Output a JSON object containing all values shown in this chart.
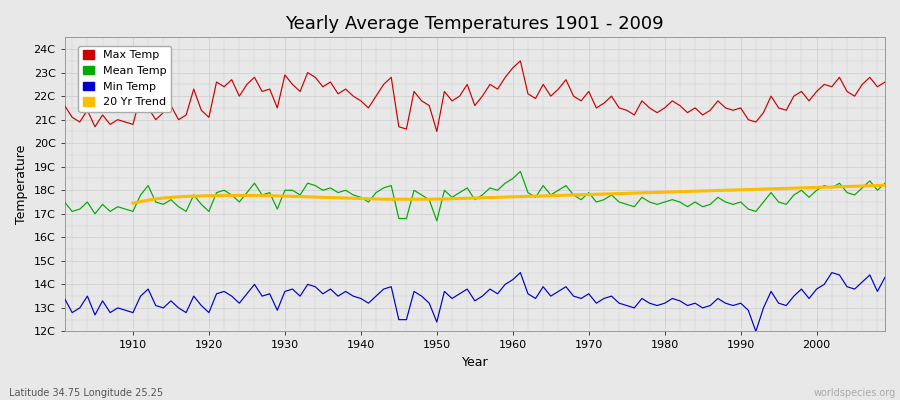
{
  "title": "Yearly Average Temperatures 1901 - 2009",
  "xlabel": "Year",
  "ylabel": "Temperature",
  "lat_lon_label": "Latitude 34.75 Longitude 25.25",
  "watermark": "worldspecies.org",
  "years": [
    1901,
    1902,
    1903,
    1904,
    1905,
    1906,
    1907,
    1908,
    1909,
    1910,
    1911,
    1912,
    1913,
    1914,
    1915,
    1916,
    1917,
    1918,
    1919,
    1920,
    1921,
    1922,
    1923,
    1924,
    1925,
    1926,
    1927,
    1928,
    1929,
    1930,
    1931,
    1932,
    1933,
    1934,
    1935,
    1936,
    1937,
    1938,
    1939,
    1940,
    1941,
    1942,
    1943,
    1944,
    1945,
    1946,
    1947,
    1948,
    1949,
    1950,
    1951,
    1952,
    1953,
    1954,
    1955,
    1956,
    1957,
    1958,
    1959,
    1960,
    1961,
    1962,
    1963,
    1964,
    1965,
    1966,
    1967,
    1968,
    1969,
    1970,
    1971,
    1972,
    1973,
    1974,
    1975,
    1976,
    1977,
    1978,
    1979,
    1980,
    1981,
    1982,
    1983,
    1984,
    1985,
    1986,
    1987,
    1988,
    1989,
    1990,
    1991,
    1992,
    1993,
    1994,
    1995,
    1996,
    1997,
    1998,
    1999,
    2000,
    2001,
    2002,
    2003,
    2004,
    2005,
    2006,
    2007,
    2008,
    2009
  ],
  "max_temp": [
    21.6,
    21.1,
    20.9,
    21.4,
    20.7,
    21.2,
    20.8,
    21.0,
    20.9,
    20.8,
    22.0,
    21.5,
    21.0,
    21.3,
    21.6,
    21.0,
    21.2,
    22.3,
    21.4,
    21.1,
    22.6,
    22.4,
    22.7,
    22.0,
    22.5,
    22.8,
    22.2,
    22.3,
    21.5,
    22.9,
    22.5,
    22.2,
    23.0,
    22.8,
    22.4,
    22.6,
    22.1,
    22.3,
    22.0,
    21.8,
    21.5,
    22.0,
    22.5,
    22.8,
    20.7,
    20.6,
    22.2,
    21.8,
    21.6,
    20.5,
    22.2,
    21.8,
    22.0,
    22.5,
    21.6,
    22.0,
    22.5,
    22.3,
    22.8,
    23.2,
    23.5,
    22.1,
    21.9,
    22.5,
    22.0,
    22.3,
    22.7,
    22.0,
    21.8,
    22.2,
    21.5,
    21.7,
    22.0,
    21.5,
    21.4,
    21.2,
    21.8,
    21.5,
    21.3,
    21.5,
    21.8,
    21.6,
    21.3,
    21.5,
    21.2,
    21.4,
    21.8,
    21.5,
    21.4,
    21.5,
    21.0,
    20.9,
    21.3,
    22.0,
    21.5,
    21.4,
    22.0,
    22.2,
    21.8,
    22.2,
    22.5,
    22.4,
    22.8,
    22.2,
    22.0,
    22.5,
    22.8,
    22.4,
    22.6
  ],
  "mean_temp": [
    17.5,
    17.1,
    17.2,
    17.5,
    17.0,
    17.4,
    17.1,
    17.3,
    17.2,
    17.1,
    17.8,
    18.2,
    17.5,
    17.4,
    17.6,
    17.3,
    17.1,
    17.8,
    17.4,
    17.1,
    17.9,
    18.0,
    17.8,
    17.5,
    17.9,
    18.3,
    17.8,
    17.9,
    17.2,
    18.0,
    18.0,
    17.8,
    18.3,
    18.2,
    18.0,
    18.1,
    17.9,
    18.0,
    17.8,
    17.7,
    17.5,
    17.9,
    18.1,
    18.2,
    16.8,
    16.8,
    18.0,
    17.8,
    17.6,
    16.7,
    18.0,
    17.7,
    17.9,
    18.1,
    17.6,
    17.8,
    18.1,
    18.0,
    18.3,
    18.5,
    18.8,
    17.9,
    17.7,
    18.2,
    17.8,
    18.0,
    18.2,
    17.8,
    17.6,
    17.9,
    17.5,
    17.6,
    17.8,
    17.5,
    17.4,
    17.3,
    17.7,
    17.5,
    17.4,
    17.5,
    17.6,
    17.5,
    17.3,
    17.5,
    17.3,
    17.4,
    17.7,
    17.5,
    17.4,
    17.5,
    17.2,
    17.1,
    17.5,
    17.9,
    17.5,
    17.4,
    17.8,
    18.0,
    17.7,
    18.0,
    18.2,
    18.1,
    18.3,
    17.9,
    17.8,
    18.1,
    18.4,
    18.0,
    18.3
  ],
  "min_temp": [
    13.4,
    12.8,
    13.0,
    13.5,
    12.7,
    13.3,
    12.8,
    13.0,
    12.9,
    12.8,
    13.5,
    13.8,
    13.1,
    13.0,
    13.3,
    13.0,
    12.8,
    13.5,
    13.1,
    12.8,
    13.6,
    13.7,
    13.5,
    13.2,
    13.6,
    14.0,
    13.5,
    13.6,
    12.9,
    13.7,
    13.8,
    13.5,
    14.0,
    13.9,
    13.6,
    13.8,
    13.5,
    13.7,
    13.5,
    13.4,
    13.2,
    13.5,
    13.8,
    13.9,
    12.5,
    12.5,
    13.7,
    13.5,
    13.2,
    12.4,
    13.7,
    13.4,
    13.6,
    13.8,
    13.3,
    13.5,
    13.8,
    13.6,
    14.0,
    14.2,
    14.5,
    13.6,
    13.4,
    13.9,
    13.5,
    13.7,
    13.9,
    13.5,
    13.4,
    13.6,
    13.2,
    13.4,
    13.5,
    13.2,
    13.1,
    13.0,
    13.4,
    13.2,
    13.1,
    13.2,
    13.4,
    13.3,
    13.1,
    13.2,
    13.0,
    13.1,
    13.4,
    13.2,
    13.1,
    13.2,
    12.9,
    12.0,
    13.0,
    13.7,
    13.2,
    13.1,
    13.5,
    13.8,
    13.4,
    13.8,
    14.0,
    14.5,
    14.4,
    13.9,
    13.8,
    14.1,
    14.4,
    13.7,
    14.3
  ],
  "trend_start_year": 1910,
  "trend_values": [
    17.45,
    17.52,
    17.58,
    17.63,
    17.67,
    17.7,
    17.72,
    17.74,
    17.75,
    17.76,
    17.77,
    17.77,
    17.78,
    17.78,
    17.78,
    17.78,
    17.78,
    17.77,
    17.77,
    17.76,
    17.75,
    17.74,
    17.73,
    17.72,
    17.71,
    17.7,
    17.69,
    17.68,
    17.67,
    17.66,
    17.65,
    17.64,
    17.63,
    17.62,
    17.62,
    17.62,
    17.62,
    17.62,
    17.62,
    17.62,
    17.63,
    17.63,
    17.64,
    17.65,
    17.66,
    17.67,
    17.68,
    17.69,
    17.7,
    17.71,
    17.72,
    17.73,
    17.74,
    17.75,
    17.76,
    17.77,
    17.78,
    17.79,
    17.8,
    17.81,
    17.82,
    17.83,
    17.84,
    17.85,
    17.86,
    17.87,
    17.88,
    17.89,
    17.9,
    17.91,
    17.92,
    17.93,
    17.94,
    17.95,
    17.96,
    17.97,
    17.98,
    17.99,
    18.0,
    18.01,
    18.02,
    18.03,
    18.04,
    18.05,
    18.06,
    18.07,
    18.08,
    18.09,
    18.1,
    18.11,
    18.12,
    18.13,
    18.14,
    18.15,
    18.16,
    18.17,
    18.18,
    18.19,
    18.2,
    18.21
  ],
  "bg_color": "#e8e8e8",
  "plot_bg_color": "#e8e8e8",
  "max_color": "#cc0000",
  "mean_color": "#00aa00",
  "min_color": "#0000cc",
  "trend_color": "#ffbb00",
  "grid_color": "#cccccc",
  "ylim": [
    12,
    24.5
  ],
  "yticks": [
    12,
    13,
    14,
    15,
    16,
    17,
    18,
    19,
    20,
    21,
    22,
    23,
    24
  ],
  "ytick_labels": [
    "12C",
    "13C",
    "14C",
    "15C",
    "16C",
    "17C",
    "18C",
    "19C",
    "20C",
    "21C",
    "22C",
    "23C",
    "24C"
  ],
  "xlim": [
    1901,
    2009
  ],
  "title_fontsize": 13,
  "legend_fontsize": 8,
  "tick_fontsize": 8,
  "label_fontsize": 9
}
